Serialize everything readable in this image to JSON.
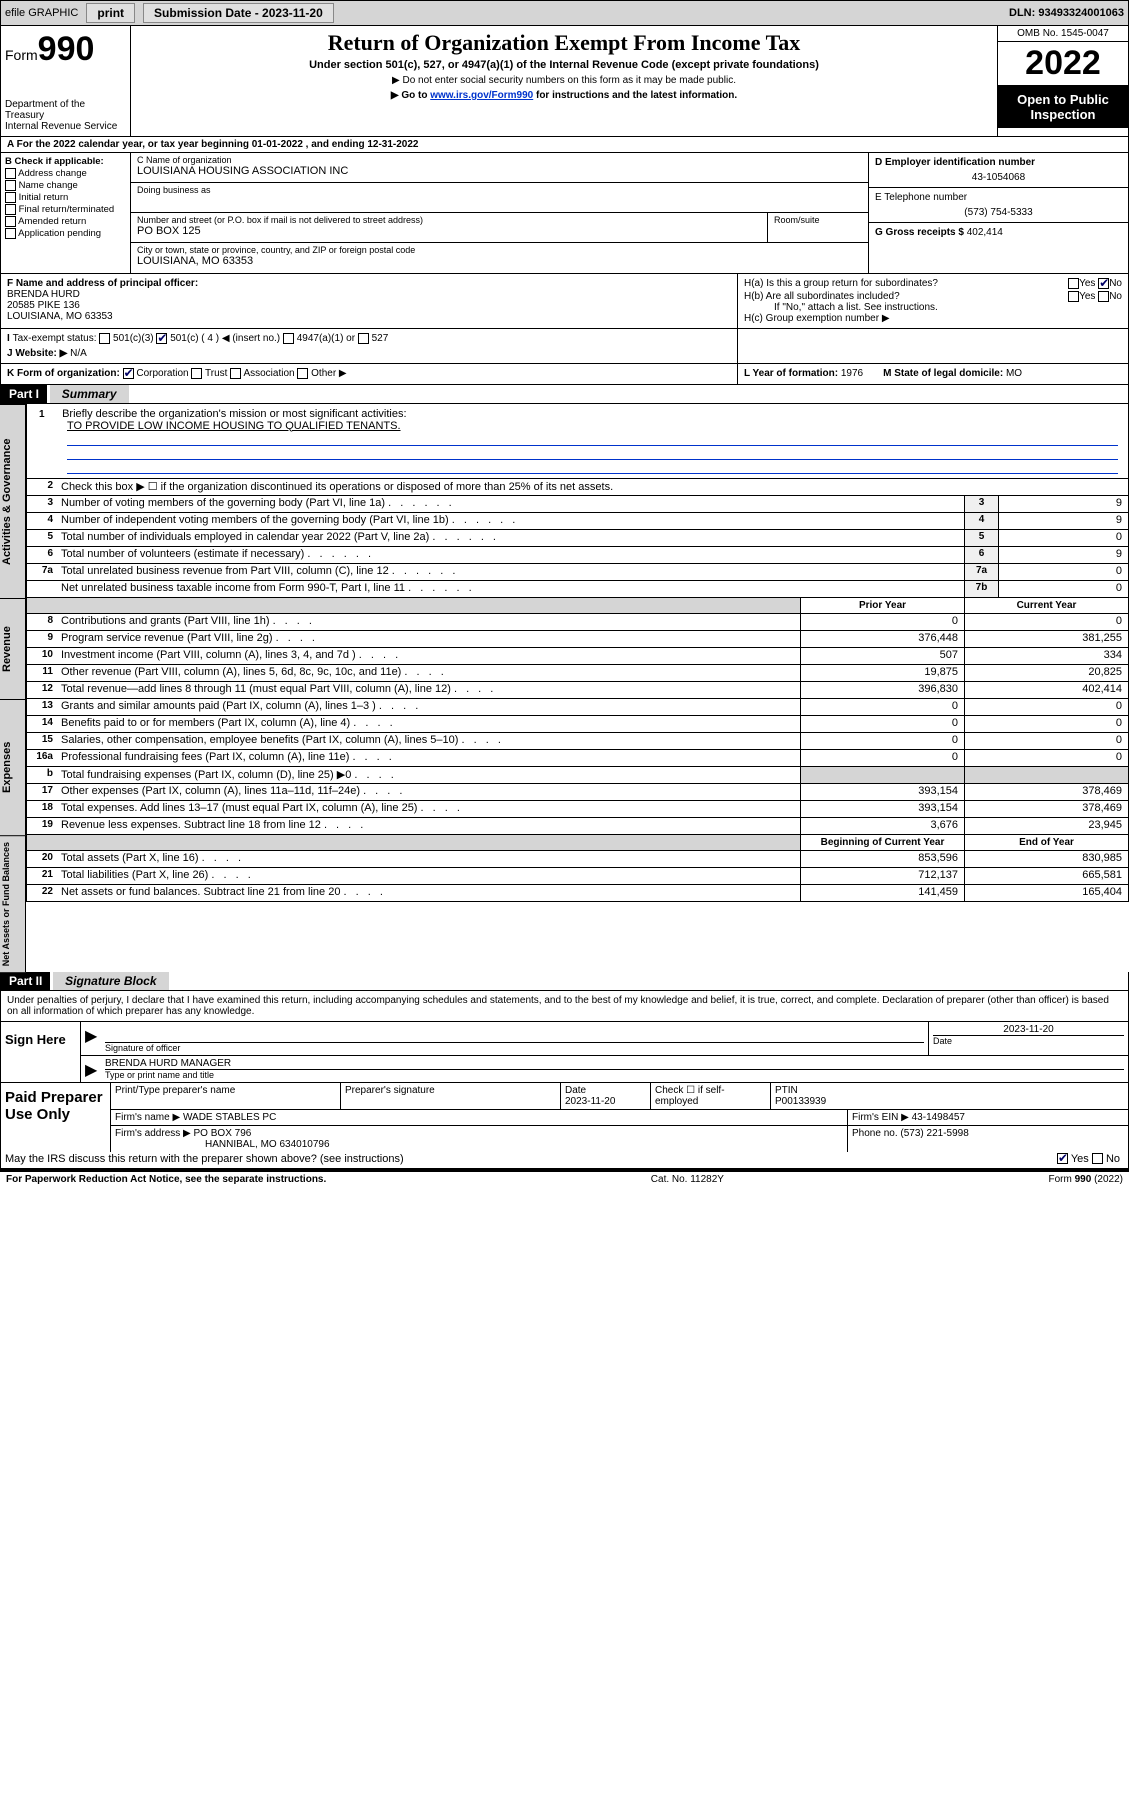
{
  "topbar": {
    "efile_label": "efile GRAPHIC",
    "print_btn": "print",
    "submission_label": "Submission Date - 2023-11-20",
    "dln_label": "DLN: 93493324001063"
  },
  "header": {
    "form_word": "Form",
    "form_num": "990",
    "dept": "Department of the Treasury\nInternal Revenue Service",
    "title": "Return of Organization Exempt From Income Tax",
    "sub1": "Under section 501(c), 527, or 4947(a)(1) of the Internal Revenue Code (except private foundations)",
    "sub2": "▶ Do not enter social security numbers on this form as it may be made public.",
    "sub3_pre": "▶ Go to ",
    "sub3_link": "www.irs.gov/Form990",
    "sub3_post": " for instructions and the latest information.",
    "omb": "OMB No. 1545-0047",
    "year": "2022",
    "open": "Open to Public Inspection"
  },
  "period": {
    "label_a": "A For the 2022 calendar year, or tax year beginning ",
    "begin": "01-01-2022",
    "label_mid": " , and ending ",
    "end": "12-31-2022"
  },
  "block_b": {
    "title": "B Check if applicable:",
    "items": [
      "Address change",
      "Name change",
      "Initial return",
      "Final return/terminated",
      "Amended return",
      "Application pending"
    ]
  },
  "block_c": {
    "name_lbl": "C Name of organization",
    "name_val": "LOUISIANA HOUSING ASSOCIATION INC",
    "dba_lbl": "Doing business as",
    "addr_lbl": "Number and street (or P.O. box if mail is not delivered to street address)",
    "addr_val": "PO BOX 125",
    "suite_lbl": "Room/suite",
    "city_lbl": "City or town, state or province, country, and ZIP or foreign postal code",
    "city_val": "LOUISIANA, MO  63353"
  },
  "block_d": {
    "lbl": "D Employer identification number",
    "val": "43-1054068"
  },
  "block_e": {
    "lbl": "E Telephone number",
    "val": "(573) 754-5333"
  },
  "block_g": {
    "lbl": "G Gross receipts $",
    "val": "402,414"
  },
  "block_f": {
    "lbl": "F Name and address of principal officer:",
    "name": "BRENDA HURD",
    "addr1": "20585 PIKE 136",
    "addr2": "LOUISIANA, MO  63353"
  },
  "block_h": {
    "a_lbl": "H(a)  Is this a group return for subordinates?",
    "b_lbl": "H(b)  Are all subordinates included?",
    "note": "If \"No,\" attach a list. See instructions.",
    "c_lbl": "H(c)  Group exemption number ▶",
    "yes": "Yes",
    "no": "No"
  },
  "block_i": {
    "lbl": "Tax-exempt status:",
    "opts": [
      "501(c)(3)",
      "501(c) ( 4 ) ◀ (insert no.)",
      "4947(a)(1) or",
      "527"
    ]
  },
  "block_j": {
    "lbl": "J  Website: ▶",
    "val": "N/A"
  },
  "block_k": {
    "lbl": "K Form of organization:",
    "opts": [
      "Corporation",
      "Trust",
      "Association",
      "Other ▶"
    ]
  },
  "block_l": {
    "lbl": "L Year of formation:",
    "val": "1976"
  },
  "block_m": {
    "lbl": "M State of legal domicile:",
    "val": "MO"
  },
  "part1": {
    "hdr": "Part I",
    "title": "Summary"
  },
  "mission": {
    "num": "1",
    "lbl": "Briefly describe the organization's mission or most significant activities:",
    "val": "TO PROVIDE LOW INCOME HOUSING TO QUALIFIED TENANTS."
  },
  "line2": {
    "num": "2",
    "txt": "Check this box ▶ ☐  if the organization discontinued its operations or disposed of more than 25% of its net assets."
  },
  "side_labels": {
    "gov": "Activities & Governance",
    "rev": "Revenue",
    "exp": "Expenses",
    "net": "Net Assets or Fund Balances"
  },
  "gov_lines": [
    {
      "num": "3",
      "txt": "Number of voting members of the governing body (Part VI, line 1a)",
      "box": "3",
      "val": "9"
    },
    {
      "num": "4",
      "txt": "Number of independent voting members of the governing body (Part VI, line 1b)",
      "box": "4",
      "val": "9"
    },
    {
      "num": "5",
      "txt": "Total number of individuals employed in calendar year 2022 (Part V, line 2a)",
      "box": "5",
      "val": "0"
    },
    {
      "num": "6",
      "txt": "Total number of volunteers (estimate if necessary)",
      "box": "6",
      "val": "9"
    },
    {
      "num": "7a",
      "txt": "Total unrelated business revenue from Part VIII, column (C), line 12",
      "box": "7a",
      "val": "0"
    },
    {
      "num": "",
      "txt": "Net unrelated business taxable income from Form 990-T, Part I, line 11",
      "box": "7b",
      "val": "0"
    }
  ],
  "col_hdrs": {
    "prior": "Prior Year",
    "current": "Current Year",
    "begin": "Beginning of Current Year",
    "end": "End of Year"
  },
  "rev_lines": [
    {
      "num": "8",
      "txt": "Contributions and grants (Part VIII, line 1h)",
      "prior": "0",
      "current": "0"
    },
    {
      "num": "9",
      "txt": "Program service revenue (Part VIII, line 2g)",
      "prior": "376,448",
      "current": "381,255"
    },
    {
      "num": "10",
      "txt": "Investment income (Part VIII, column (A), lines 3, 4, and 7d )",
      "prior": "507",
      "current": "334"
    },
    {
      "num": "11",
      "txt": "Other revenue (Part VIII, column (A), lines 5, 6d, 8c, 9c, 10c, and 11e)",
      "prior": "19,875",
      "current": "20,825"
    },
    {
      "num": "12",
      "txt": "Total revenue—add lines 8 through 11 (must equal Part VIII, column (A), line 12)",
      "prior": "396,830",
      "current": "402,414"
    }
  ],
  "exp_lines": [
    {
      "num": "13",
      "txt": "Grants and similar amounts paid (Part IX, column (A), lines 1–3 )",
      "prior": "0",
      "current": "0"
    },
    {
      "num": "14",
      "txt": "Benefits paid to or for members (Part IX, column (A), line 4)",
      "prior": "0",
      "current": "0"
    },
    {
      "num": "15",
      "txt": "Salaries, other compensation, employee benefits (Part IX, column (A), lines 5–10)",
      "prior": "0",
      "current": "0"
    },
    {
      "num": "16a",
      "txt": "Professional fundraising fees (Part IX, column (A), line 11e)",
      "prior": "0",
      "current": "0"
    },
    {
      "num": "b",
      "txt": "Total fundraising expenses (Part IX, column (D), line 25) ▶0",
      "prior": "",
      "current": "",
      "shade": true
    },
    {
      "num": "17",
      "txt": "Other expenses (Part IX, column (A), lines 11a–11d, 11f–24e)",
      "prior": "393,154",
      "current": "378,469"
    },
    {
      "num": "18",
      "txt": "Total expenses. Add lines 13–17 (must equal Part IX, column (A), line 25)",
      "prior": "393,154",
      "current": "378,469"
    },
    {
      "num": "19",
      "txt": "Revenue less expenses. Subtract line 18 from line 12",
      "prior": "3,676",
      "current": "23,945"
    }
  ],
  "net_lines": [
    {
      "num": "20",
      "txt": "Total assets (Part X, line 16)",
      "prior": "853,596",
      "current": "830,985"
    },
    {
      "num": "21",
      "txt": "Total liabilities (Part X, line 26)",
      "prior": "712,137",
      "current": "665,581"
    },
    {
      "num": "22",
      "txt": "Net assets or fund balances. Subtract line 21 from line 20",
      "prior": "141,459",
      "current": "165,404"
    }
  ],
  "part2": {
    "hdr": "Part II",
    "title": "Signature Block"
  },
  "declare": "Under penalties of perjury, I declare that I have examined this return, including accompanying schedules and statements, and to the best of my knowledge and belief, it is true, correct, and complete. Declaration of preparer (other than officer) is based on all information of which preparer has any knowledge.",
  "sign": {
    "here": "Sign Here",
    "sig_lbl": "Signature of officer",
    "date_lbl": "Date",
    "date_val": "2023-11-20",
    "name_val": "BRENDA HURD MANAGER",
    "name_lbl": "Type or print name and title"
  },
  "prep": {
    "title": "Paid Preparer Use Only",
    "hdr": [
      "Print/Type preparer's name",
      "Preparer's signature",
      "Date",
      "Check ☐ if self-employed",
      "PTIN"
    ],
    "date": "2023-11-20",
    "ptin": "P00133939",
    "firm_name_lbl": "Firm's name    ▶",
    "firm_name": "WADE STABLES PC",
    "firm_ein_lbl": "Firm's EIN ▶",
    "firm_ein": "43-1498457",
    "firm_addr_lbl": "Firm's address ▶",
    "firm_addr1": "PO BOX 796",
    "firm_addr2": "HANNIBAL, MO  634010796",
    "phone_lbl": "Phone no.",
    "phone": "(573) 221-5998"
  },
  "discuss": {
    "txt": "May the IRS discuss this return with the preparer shown above? (see instructions)",
    "yes": "Yes",
    "no": "No"
  },
  "footer": {
    "left": "For Paperwork Reduction Act Notice, see the separate instructions.",
    "mid": "Cat. No. 11282Y",
    "right": "Form 990 (2022)"
  },
  "colors": {
    "link": "#0033cc",
    "shade": "#d5d5d5",
    "black": "#000000"
  }
}
